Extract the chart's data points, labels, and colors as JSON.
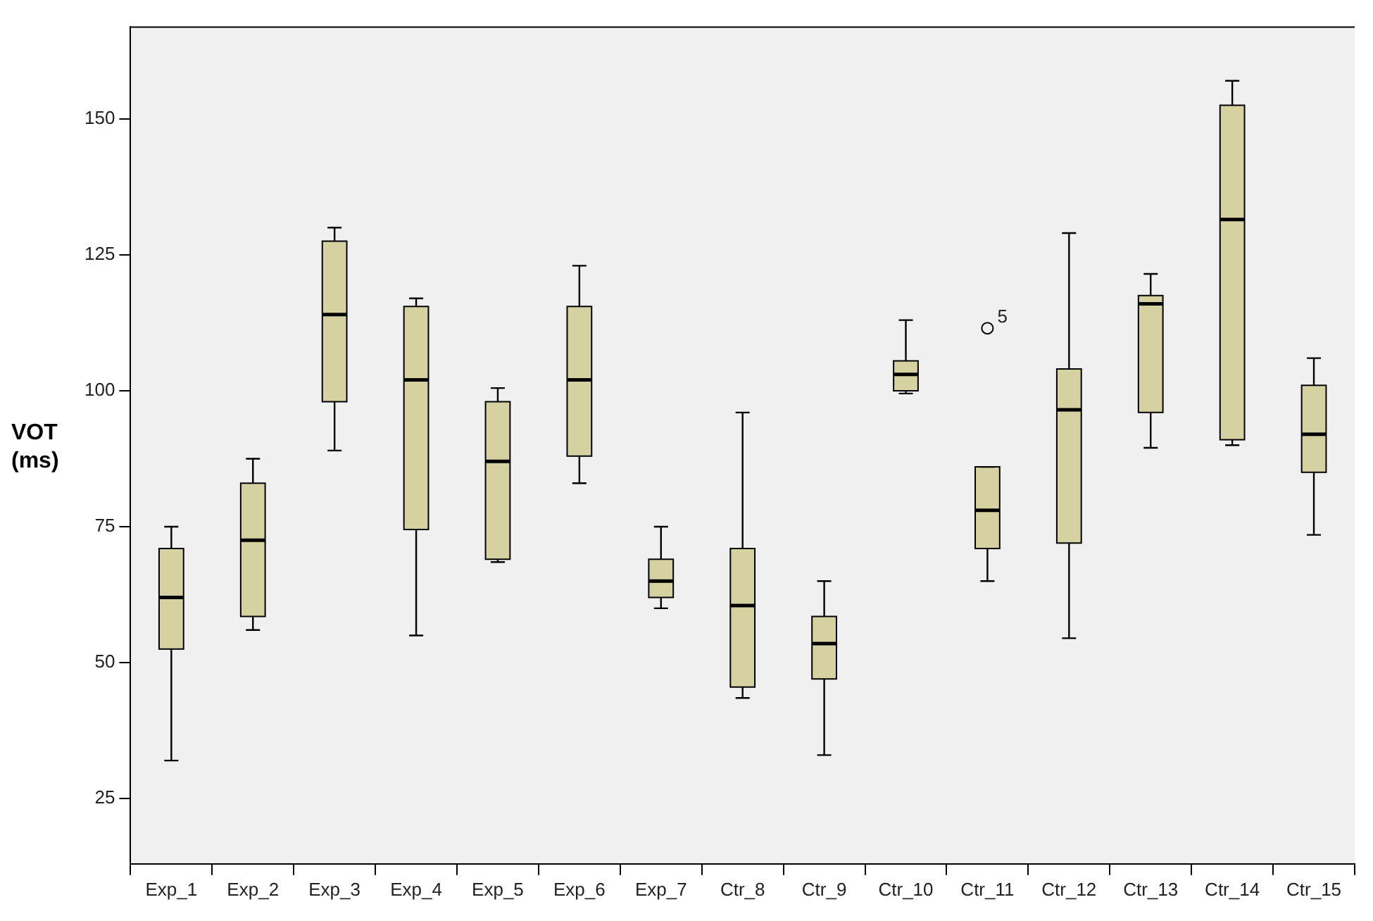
{
  "chart_data": {
    "type": "box",
    "ylabel": "VOT (ms)",
    "categories": [
      "Exp_1",
      "Exp_2",
      "Exp_3",
      "Exp_4",
      "Exp_5",
      "Exp_6",
      "Exp_7",
      "Ctr_8",
      "Ctr_9",
      "Ctr_10",
      "Ctr_11",
      "Ctr_12",
      "Ctr_13",
      "Ctr_14",
      "Ctr_15"
    ],
    "series": [
      {
        "color": "#d5d1a0",
        "boxes": [
          {
            "low": 32,
            "q1": 52.5,
            "median": 62,
            "q3": 71,
            "high": 75
          },
          {
            "low": 56,
            "q1": 58.5,
            "median": 72.5,
            "q3": 83,
            "high": 87.5
          },
          {
            "low": 89,
            "q1": 98,
            "median": 114,
            "q3": 127.5,
            "high": 130
          },
          {
            "low": 55,
            "q1": 74.5,
            "median": 102,
            "q3": 115.5,
            "high": 117
          },
          {
            "low": 68.5,
            "q1": 69,
            "median": 87,
            "q3": 98,
            "high": 100.5
          },
          {
            "low": 83,
            "q1": 88,
            "median": 102,
            "q3": 115.5,
            "high": 123
          },
          {
            "low": 60,
            "q1": 62,
            "median": 65,
            "q3": 69,
            "high": 75
          },
          {
            "low": 43.5,
            "q1": 45.5,
            "median": 60.5,
            "q3": 71,
            "high": 96
          },
          {
            "low": 33,
            "q1": 47,
            "median": 53.5,
            "q3": 58.5,
            "high": 65
          },
          {
            "low": 99.5,
            "q1": 100,
            "median": 103,
            "q3": 105.5,
            "high": 113
          },
          {
            "low": 65,
            "q1": 71,
            "median": 78,
            "q3": 86,
            "high": 86,
            "outliers": [
              111.5
            ]
          },
          {
            "low": 54.5,
            "q1": 72,
            "median": 96.5,
            "q3": 104,
            "high": 129
          },
          {
            "low": 89.5,
            "q1": 96,
            "median": 116,
            "q3": 117.5,
            "high": 121.5
          },
          {
            "low": 90,
            "q1": 91,
            "median": 131.5,
            "q3": 152.5,
            "high": 157
          },
          {
            "low": 73.5,
            "q1": 85,
            "median": 92,
            "q3": 101,
            "high": 106
          }
        ]
      }
    ],
    "annotations": [
      "5"
    ],
    "ylim": [
      13,
      167
    ],
    "yticks": [
      25,
      50,
      75,
      100,
      125,
      150
    ],
    "grid": false,
    "legend": false
  }
}
